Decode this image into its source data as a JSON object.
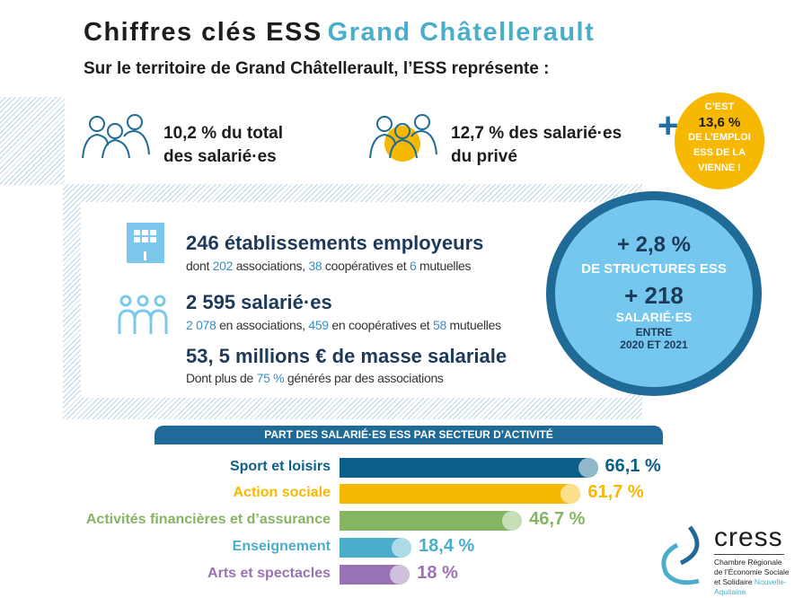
{
  "header": {
    "title": "Chiffres clés ESS",
    "title_accent": "Grand Châtellerault",
    "subtitle": "Sur le territoire de Grand Châtellerault, l’ESS représente :"
  },
  "stats": [
    {
      "icon": "people-group-icon",
      "line1": "10,2 % du total",
      "line2": "des salarié·es"
    },
    {
      "icon": "people-group-highlight-icon",
      "line1": "12,7 % des salarié·es",
      "line2": "du privé"
    }
  ],
  "callout": {
    "l1": "C’EST",
    "value": "13,6 %",
    "l2": "DE L’EMPLOI",
    "l3": "ESS DE LA",
    "l4": "VIENNE !",
    "color": "#f6b800"
  },
  "key_figures": [
    {
      "icon": "building-icon",
      "title": "246 établissements employeurs",
      "p1": "dont ",
      "n1": "202",
      "p2": " associations, ",
      "n2": "38",
      "p3": " coopératives et ",
      "n3": "6",
      "p4": " mutuelles"
    },
    {
      "icon": "people-icon",
      "title": "2 595 salarié·es",
      "n1": "2 078",
      "p2": " en associations, ",
      "n2": "459",
      "p3": " en coopératives et ",
      "n3": "58",
      "p4": " mutuelles"
    },
    {
      "title": "53, 5 millions € de masse salariale",
      "p1": "Dont plus de ",
      "n1": "75 %",
      "p2": " générés par des associations"
    }
  ],
  "evolution": {
    "v1": "+ 2,8 %",
    "l1": "DE STRUCTURES ESS",
    "v2": "+ 218",
    "l2": "SALARIÉ·ES",
    "l3": "ENTRE",
    "l4": "2020 ET 2021"
  },
  "chart_data": {
    "type": "bar",
    "title": "PART DES SALARIÉ·ES ESS PAR SECTEUR D’ACTIVITÉ",
    "orientation": "horizontal",
    "categories": [
      "Sport et loisirs",
      "Action sociale",
      "Activités financières et d’assurance",
      "Enseignement",
      "Arts et spectacles"
    ],
    "values": [
      66.1,
      61.7,
      46.7,
      18.4,
      18
    ],
    "labels": [
      "66,1 %",
      "61,7 %",
      "46,7 %",
      "18,4 %",
      "18 %"
    ],
    "colors": [
      "#0b5f8a",
      "#f6b800",
      "#85b563",
      "#4aaecb",
      "#9a73b5"
    ]
  },
  "logo": {
    "name": "cress",
    "l1": "Chambre Régionale",
    "l2": "de l’Économie Sociale",
    "l3": "et Solidaire",
    "l4": "Nouvelle-Aquitaine"
  }
}
